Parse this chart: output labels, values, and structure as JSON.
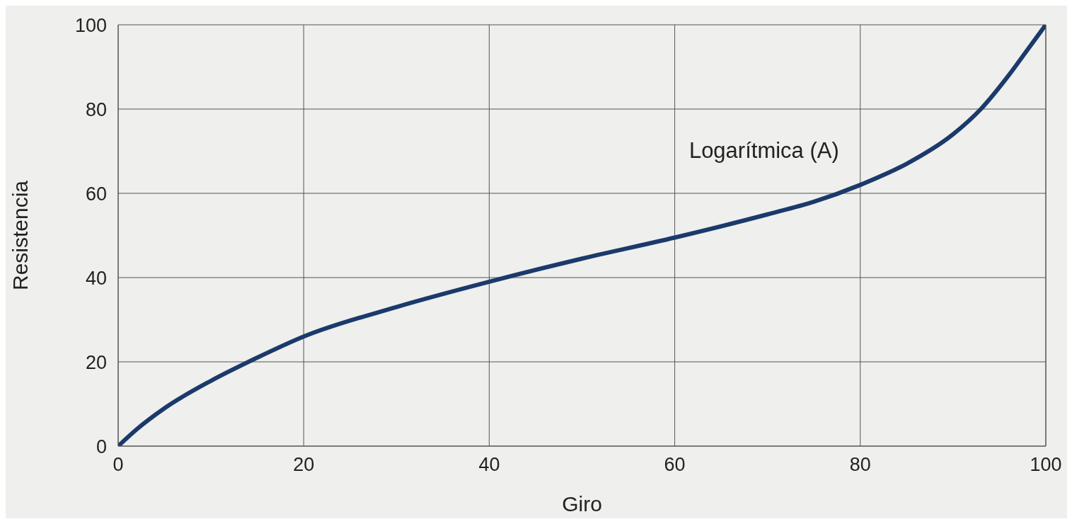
{
  "chart_data": {
    "type": "line",
    "xlabel": "Giro",
    "ylabel": "Resistencia",
    "x": [
      0,
      2,
      5,
      10,
      15,
      20,
      30,
      40,
      50,
      60,
      70,
      75,
      80,
      85,
      90,
      93,
      96,
      98,
      100
    ],
    "series": [
      {
        "name": "Logarítmica (A)",
        "color": "#1b3a6b",
        "values": [
          0,
          4,
          9,
          15.5,
          21,
          26,
          33,
          39,
          44.5,
          49.5,
          55,
          58,
          62,
          67,
          74,
          80,
          88,
          94,
          100
        ]
      }
    ],
    "xlim": [
      0,
      100
    ],
    "xticks": [
      0,
      20,
      40,
      60,
      80,
      100
    ],
    "ylim": [
      0,
      100
    ],
    "yticks": [
      0,
      20,
      40,
      60,
      80,
      100
    ],
    "grid": true,
    "marker": "none",
    "line_style": "solid"
  }
}
